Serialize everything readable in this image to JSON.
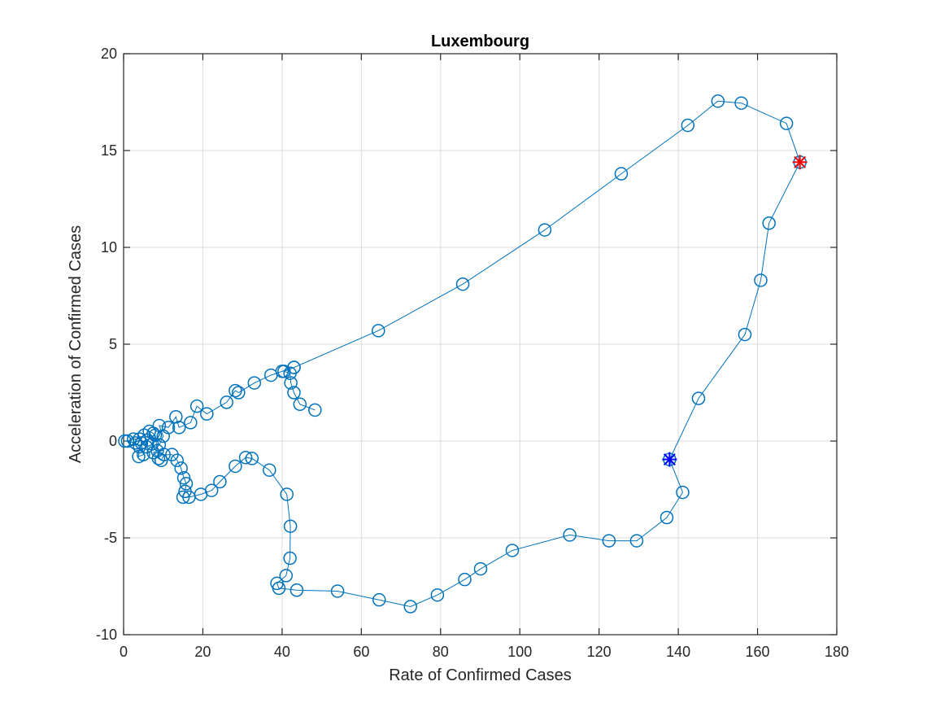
{
  "chart_data": {
    "type": "line",
    "title": "Luxembourg",
    "xlabel": "Rate of Confirmed Cases",
    "ylabel": "Acceleration of Confirmed Cases",
    "xlim": [
      0,
      180
    ],
    "ylim": [
      -10,
      20
    ],
    "xticks": [
      0,
      20,
      40,
      60,
      80,
      100,
      120,
      140,
      160,
      180
    ],
    "yticks": [
      -10,
      -5,
      0,
      5,
      10,
      15,
      20
    ],
    "grid": true,
    "colors": {
      "series": "#0072BD",
      "start_marker": "#0000FF",
      "end_marker": "#FF0000"
    },
    "series": [
      {
        "marker": "circle",
        "points": [
          [
            48.3,
            1.6
          ],
          [
            44.5,
            1.9
          ],
          [
            43.0,
            2.5
          ],
          [
            42.2,
            3.0
          ],
          [
            42.0,
            3.5
          ],
          [
            40.5,
            3.6
          ],
          [
            43.0,
            3.8
          ],
          [
            40.0,
            3.6
          ],
          [
            37.2,
            3.4
          ],
          [
            33.0,
            3.0
          ],
          [
            29.0,
            2.5
          ],
          [
            28.2,
            2.6
          ],
          [
            26.0,
            2.0
          ],
          [
            21.0,
            1.4
          ],
          [
            18.5,
            1.8
          ],
          [
            16.9,
            0.95
          ],
          [
            14.0,
            0.7
          ],
          [
            13.2,
            1.25
          ],
          [
            11.3,
            0.7
          ],
          [
            9.0,
            0.8
          ],
          [
            10.0,
            0.25
          ],
          [
            9.0,
            -0.2
          ],
          [
            7.5,
            0.4
          ],
          [
            6.5,
            0.5
          ],
          [
            5.2,
            0.3
          ],
          [
            4.0,
            0.1
          ],
          [
            2.5,
            0.1
          ],
          [
            1.0,
            0.0
          ],
          [
            0.3,
            0.0
          ],
          [
            3.0,
            -0.1
          ],
          [
            4.0,
            -0.3
          ],
          [
            3.8,
            -0.8
          ],
          [
            5.0,
            -0.7
          ],
          [
            4.5,
            -0.1
          ],
          [
            5.8,
            -0.3
          ],
          [
            6.0,
            0.05
          ],
          [
            7.2,
            -0.15
          ],
          [
            8.0,
            0.3
          ],
          [
            8.5,
            -0.5
          ],
          [
            7.5,
            -0.6
          ],
          [
            8.8,
            -0.9
          ],
          [
            9.5,
            -1.0
          ],
          [
            10.2,
            -0.7
          ],
          [
            12.2,
            -0.7
          ],
          [
            13.5,
            -1.0
          ],
          [
            14.5,
            -1.4
          ],
          [
            15.2,
            -1.9
          ],
          [
            15.8,
            -2.2
          ],
          [
            15.5,
            -2.6
          ],
          [
            15.0,
            -2.9
          ],
          [
            16.5,
            -2.9
          ],
          [
            19.5,
            -2.75
          ],
          [
            22.2,
            -2.55
          ],
          [
            24.3,
            -2.1
          ],
          [
            28.2,
            -1.3
          ],
          [
            30.8,
            -0.85
          ],
          [
            32.4,
            -0.9
          ],
          [
            36.8,
            -1.5
          ],
          [
            41.2,
            -2.75
          ],
          [
            42.1,
            -4.4
          ],
          [
            42.0,
            -6.05
          ],
          [
            41.0,
            -6.95
          ],
          [
            38.7,
            -7.35
          ],
          [
            39.2,
            -7.6
          ],
          [
            43.7,
            -7.7
          ],
          [
            54.0,
            -7.75
          ],
          [
            64.5,
            -8.2
          ],
          [
            72.4,
            -8.55
          ],
          [
            79.2,
            -7.95
          ],
          [
            86.1,
            -7.15
          ],
          [
            90.1,
            -6.6
          ],
          [
            98.1,
            -5.65
          ],
          [
            112.6,
            -4.85
          ],
          [
            122.5,
            -5.15
          ],
          [
            129.5,
            -5.15
          ],
          [
            137.1,
            -3.95
          ],
          [
            141.1,
            -2.65
          ],
          [
            137.8,
            -0.95
          ],
          [
            145.1,
            2.2
          ],
          [
            156.8,
            5.5
          ],
          [
            160.8,
            8.3
          ],
          [
            162.9,
            11.25
          ],
          [
            170.7,
            14.4
          ],
          [
            167.3,
            16.4
          ],
          [
            155.9,
            17.45
          ],
          [
            150.0,
            17.55
          ],
          [
            142.4,
            16.3
          ],
          [
            125.6,
            13.8
          ],
          [
            106.3,
            10.9
          ],
          [
            85.6,
            8.1
          ],
          [
            64.3,
            5.7
          ],
          [
            43.0,
            3.8
          ]
        ]
      }
    ],
    "start_point": [
      137.8,
      -0.95
    ],
    "end_point": [
      170.7,
      14.4
    ]
  }
}
